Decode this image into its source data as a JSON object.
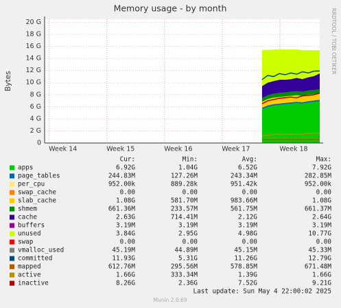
{
  "chart_data": {
    "type": "area",
    "title": "Memory usage - by month",
    "y_label": "Bytes",
    "side_text": "RRDTOOL / TOBI OETIKER",
    "footer": "Last update: Sun May  4 22:00:02 2025",
    "version": "Munin 2.0.69",
    "grid": true,
    "xlim": [
      13.92,
      18.69
    ],
    "xticks": [
      {
        "value": 14,
        "label": "Week 14"
      },
      {
        "value": 15,
        "label": "Week 15"
      },
      {
        "value": 16,
        "label": "Week 16"
      },
      {
        "value": 17,
        "label": "Week 17"
      },
      {
        "value": 18,
        "label": "Week 18"
      }
    ],
    "ylim": [
      0,
      20.5
    ],
    "yticks": [
      0,
      {
        "value": 2,
        "label": "2 G"
      },
      {
        "value": 4,
        "label": "4 G"
      },
      {
        "value": 6,
        "label": "6 G"
      },
      {
        "value": 8,
        "label": "8 G"
      },
      {
        "value": 10,
        "label": "10 G"
      },
      {
        "value": 12,
        "label": "12 G"
      },
      {
        "value": 14,
        "label": "14 G"
      },
      {
        "value": 16,
        "label": "16 G"
      },
      {
        "value": 18,
        "label": "18 G"
      },
      {
        "value": 20,
        "label": "20 G"
      }
    ],
    "x": [
      17.69,
      17.79,
      17.89,
      17.99,
      18.09,
      18.19,
      18.29,
      18.39,
      18.49,
      18.59,
      18.69
    ],
    "stat_headers": [
      "Cur:",
      "Min:",
      "Avg:",
      "Max:"
    ],
    "series": [
      {
        "name": "apps",
        "color": "#00cc00",
        "draw": "stack",
        "values": [
          5.6,
          6.0,
          6.2,
          6.3,
          6.4,
          6.5,
          6.6,
          6.5,
          6.7,
          6.8,
          6.92
        ],
        "stats": [
          "6.92G",
          "1.04G",
          "6.52G",
          "7.92G"
        ]
      },
      {
        "name": "page_tables",
        "color": "#0066b3",
        "draw": "stack",
        "values": [
          0.23,
          0.24,
          0.24,
          0.24,
          0.24,
          0.24,
          0.24,
          0.25,
          0.24,
          0.24,
          0.24
        ],
        "stats": [
          "244.83M",
          "127.26M",
          "243.34M",
          "282.85M"
        ]
      },
      {
        "name": "per_cpu",
        "color": "#ffe680",
        "draw": "stack",
        "values": [
          0.001,
          0.001,
          0.001,
          0.001,
          0.001,
          0.001,
          0.001,
          0.001,
          0.001,
          0.001,
          0.001
        ],
        "stats": [
          "952.00k",
          "889.28k",
          "951.42k",
          "952.00k"
        ]
      },
      {
        "name": "swap_cache",
        "color": "#ff8000",
        "draw": "stack",
        "values": [
          0,
          0,
          0,
          0,
          0,
          0,
          0,
          0,
          0,
          0,
          0
        ],
        "stats": [
          "0.00",
          "0.00",
          "0.00",
          "0.00"
        ]
      },
      {
        "name": "slab_cache",
        "color": "#ffcc00",
        "draw": "stack",
        "values": [
          1.0,
          1.05,
          1.08,
          1.08,
          1.08,
          1.08,
          1.08,
          1.08,
          1.08,
          1.08,
          1.08
        ],
        "stats": [
          "1.08G",
          "581.70M",
          "983.66M",
          "1.08G"
        ]
      },
      {
        "name": "shmem",
        "color": "#008f00",
        "draw": "stack",
        "values": [
          0.6,
          0.62,
          0.64,
          0.66,
          0.66,
          0.66,
          0.66,
          0.66,
          0.66,
          0.66,
          0.66
        ],
        "stats": [
          "661.36M",
          "233.57M",
          "561.75M",
          "661.37M"
        ]
      },
      {
        "name": "cache",
        "color": "#330099",
        "draw": "stack",
        "values": [
          2.0,
          2.1,
          2.1,
          2.2,
          2.1,
          2.1,
          2.2,
          2.1,
          2.2,
          2.3,
          2.63
        ],
        "stats": [
          "2.63G",
          "714.41M",
          "2.12G",
          "2.64G"
        ]
      },
      {
        "name": "buffers",
        "color": "#990099",
        "draw": "stack",
        "values": [
          0.003,
          0.003,
          0.003,
          0.003,
          0.003,
          0.003,
          0.003,
          0.003,
          0.003,
          0.003,
          0.003
        ],
        "stats": [
          "3.19M",
          "3.19M",
          "3.19M",
          "3.19M"
        ]
      },
      {
        "name": "unused",
        "color": "#ccff00",
        "draw": "stack",
        "values": [
          6.0,
          5.4,
          5.2,
          5.0,
          5.0,
          4.9,
          4.7,
          4.8,
          4.5,
          4.3,
          3.84
        ],
        "stats": [
          "3.84G",
          "2.95G",
          "4.98G",
          "10.77G"
        ]
      },
      {
        "name": "swap",
        "color": "#ff0000",
        "draw": "stack",
        "values": [
          0,
          0,
          0,
          0,
          0,
          0,
          0,
          0,
          0,
          0,
          0
        ],
        "stats": [
          "0.00",
          "0.00",
          "0.00",
          "0.00"
        ]
      },
      {
        "name": "vmalloc_used",
        "color": "#808080",
        "draw": "line",
        "values": [
          0.045,
          0.045,
          0.045,
          0.045,
          0.045,
          0.045,
          0.045,
          0.045,
          0.045,
          0.045,
          0.045
        ],
        "stats": [
          "45.19M",
          "44.89M",
          "45.15M",
          "45.33M"
        ]
      },
      {
        "name": "committed",
        "color": "#00487d",
        "draw": "line",
        "values": [
          10.5,
          11.2,
          11.0,
          11.5,
          11.3,
          11.6,
          11.4,
          11.8,
          11.6,
          11.9,
          11.93
        ],
        "stats": [
          "11.93G",
          "5.31G",
          "11.26G",
          "12.79G"
        ]
      },
      {
        "name": "mapped",
        "color": "#b35a00",
        "draw": "line",
        "values": [
          0.55,
          0.57,
          0.58,
          0.58,
          0.59,
          0.58,
          0.58,
          0.6,
          0.59,
          0.6,
          0.61
        ],
        "stats": [
          "612.76M",
          "295.56M",
          "578.85M",
          "671.48M"
        ]
      },
      {
        "name": "active",
        "color": "#b38f00",
        "draw": "line",
        "values": [
          1.2,
          1.3,
          1.4,
          1.5,
          1.4,
          1.5,
          1.4,
          1.5,
          1.6,
          1.6,
          1.66
        ],
        "stats": [
          "1.66G",
          "333.34M",
          "1.39G",
          "1.66G"
        ]
      },
      {
        "name": "inactive",
        "color": "#b30000",
        "draw": "line",
        "values": [
          6.5,
          7.0,
          7.2,
          7.4,
          7.5,
          7.6,
          7.5,
          7.8,
          7.9,
          8.0,
          8.26
        ],
        "stats": [
          "8.26G",
          "2.36G",
          "7.52G",
          "9.21G"
        ]
      }
    ]
  }
}
